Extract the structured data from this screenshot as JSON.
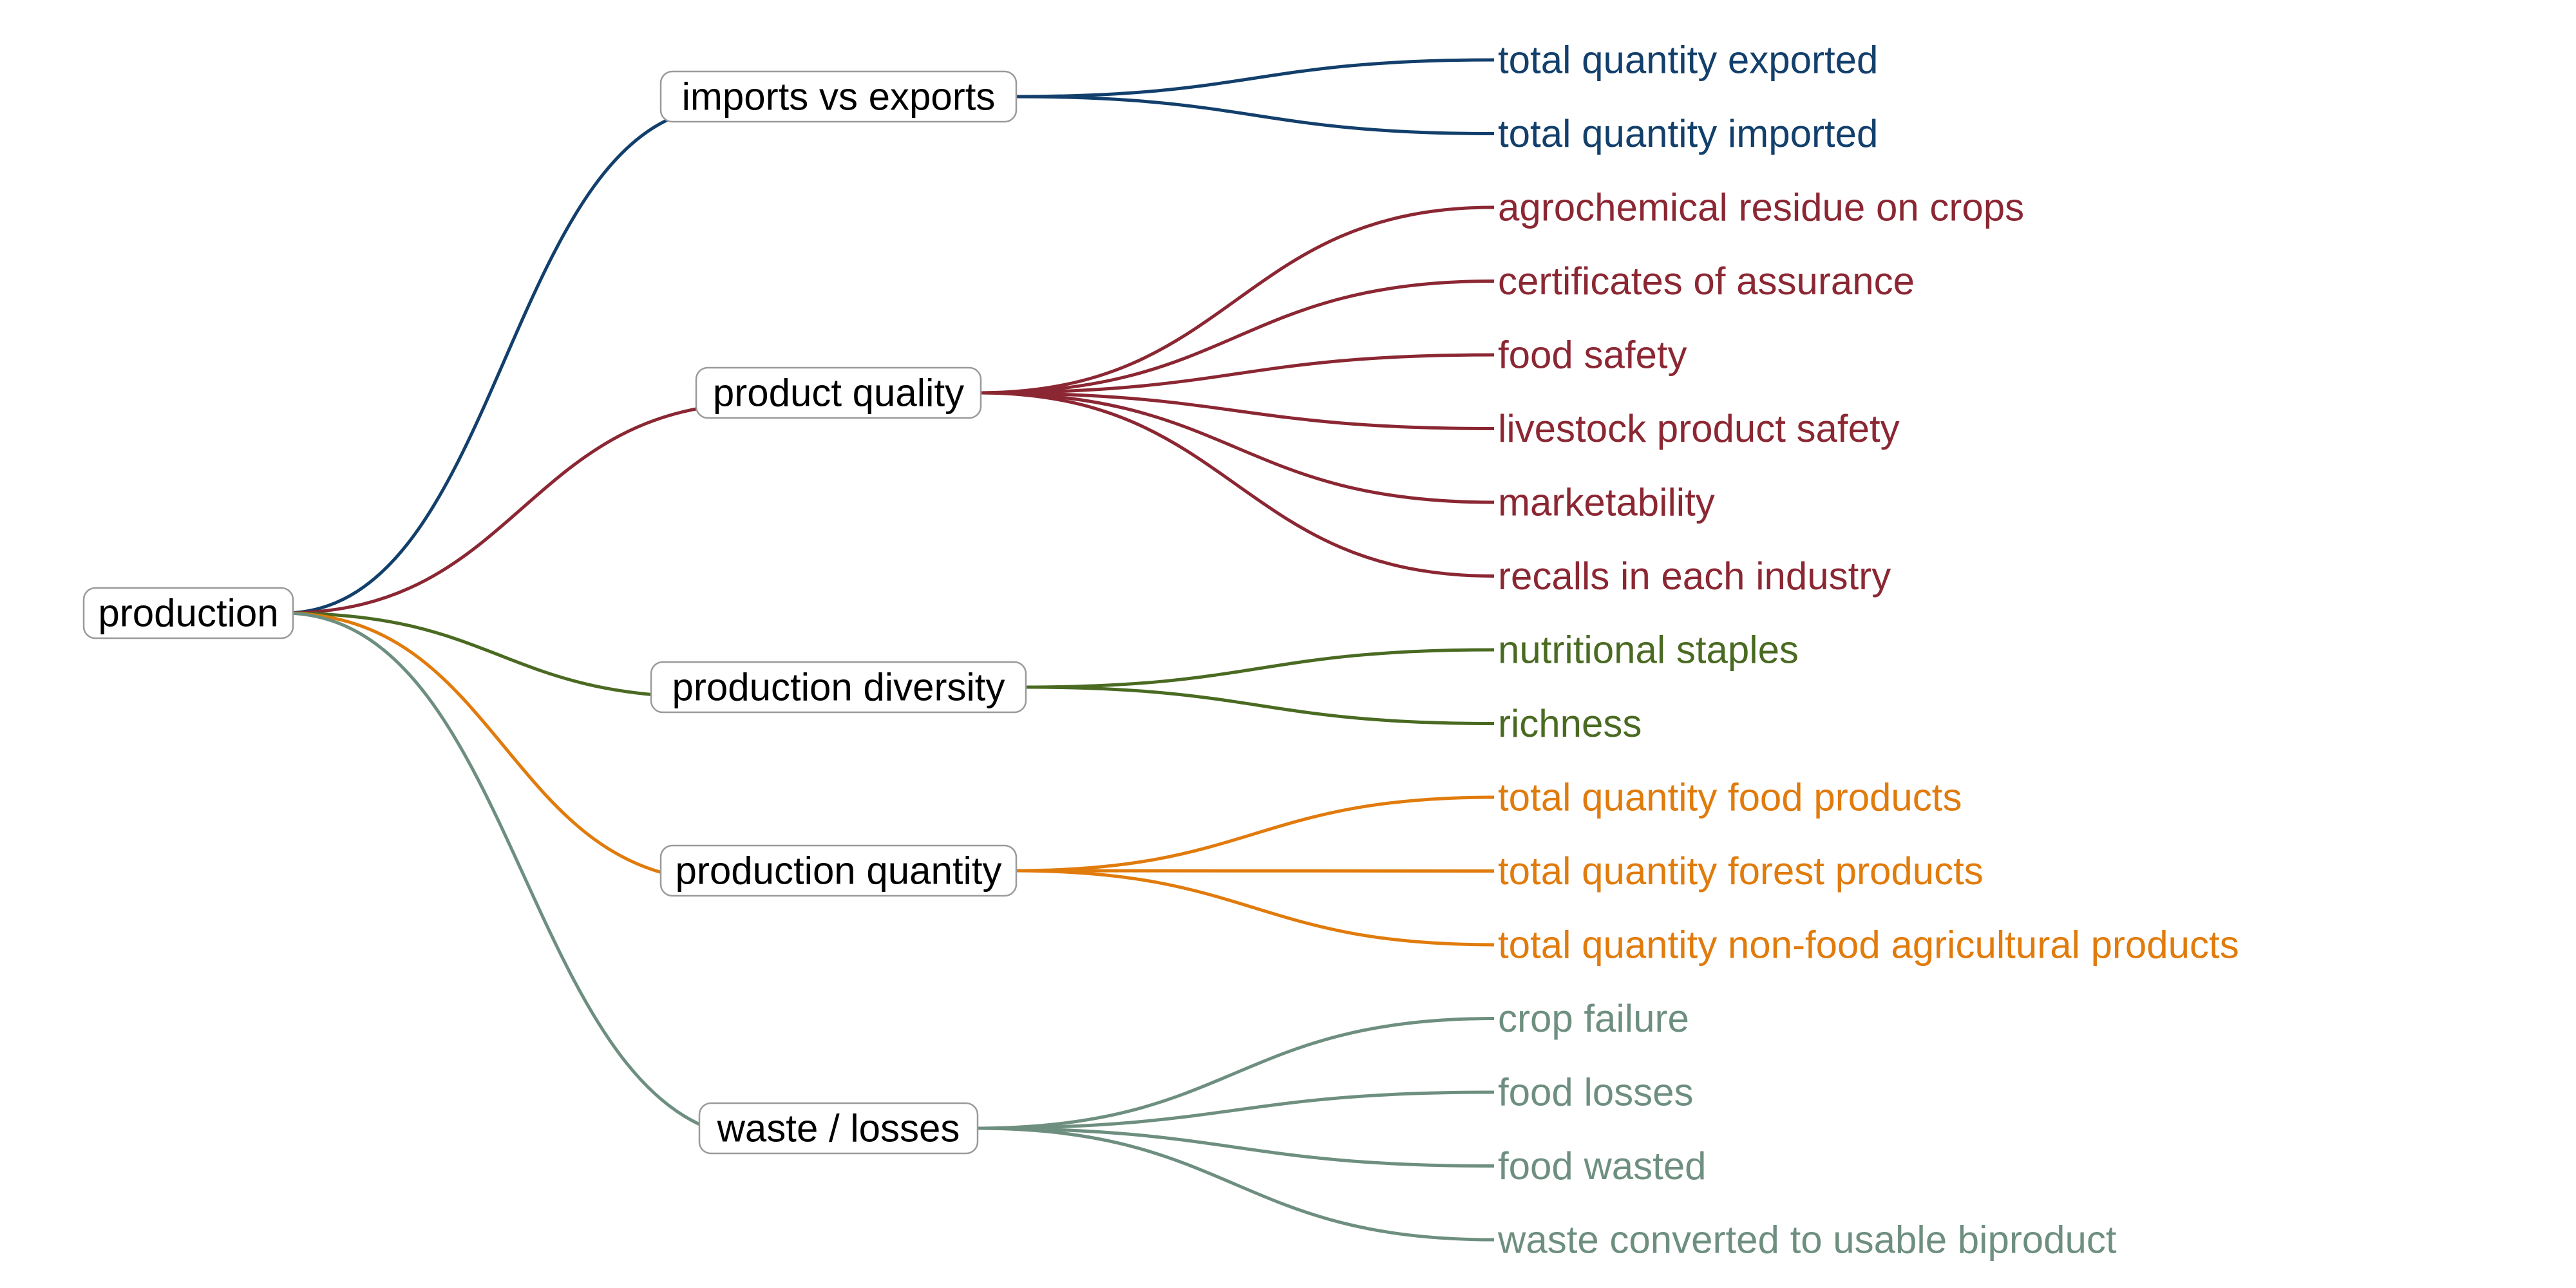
{
  "root": {
    "label": "production"
  },
  "branches": [
    {
      "label": "imports vs exports",
      "color": "#123f6b",
      "leaves": [
        "total quantity exported",
        "total quantity imported"
      ]
    },
    {
      "label": "product quality",
      "color": "#8b2733",
      "leaves": [
        "agrochemical residue on crops",
        "certificates of assurance",
        "food safety",
        "livestock product safety",
        "marketability",
        "recalls in each industry"
      ]
    },
    {
      "label": "production diversity",
      "color": "#4a6a22",
      "leaves": [
        "nutritional staples",
        "richness"
      ]
    },
    {
      "label": "production quantity",
      "color": "#e07b0c",
      "leaves": [
        "total quantity food products",
        "total quantity forest products",
        "total quantity non-food agricultural products"
      ]
    },
    {
      "label": "waste / losses",
      "color": "#6e8f80",
      "leaves": [
        "crop failure",
        "food losses",
        "food wasted",
        "waste converted to usable biproduct"
      ]
    }
  ]
}
